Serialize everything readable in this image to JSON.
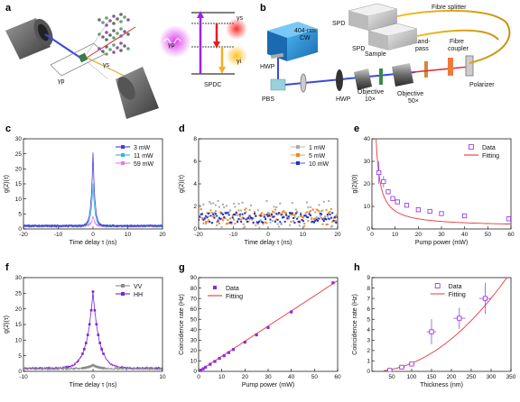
{
  "panel_labels": {
    "a": "a",
    "b": "b",
    "c": "c",
    "d": "d",
    "e": "e",
    "f": "f",
    "g": "g",
    "h": "h"
  },
  "schematic_a": {
    "gamma_p": "γp",
    "gamma_s": "γs",
    "gamma_i": "γi",
    "spdc": "SPDC"
  },
  "schematic_b": {
    "laser": "404-nm\nCW",
    "laser_l1": "404-nm",
    "laser_l2": "CW",
    "hwp1": "HWP",
    "pbs": "PBS",
    "hwp2": "HWP",
    "objective10_l1": "Objective",
    "objective10_l2": "10×",
    "sample": "Sample",
    "objective50_l1": "Objective",
    "objective50_l2": "50×",
    "bandpass_l1": "Band-",
    "bandpass_l2": "pass",
    "fibre_coupler_l1": "Fibre",
    "fibre_coupler_l2": "coupler",
    "polarizer": "Polarizer",
    "spd1": "SPD",
    "spd2": "SPD",
    "fibre_splitter": "Fibre splitter"
  },
  "colors": {
    "c_3mw": "#4a3bd8",
    "c_11mw": "#2fb8d8",
    "c_59mw": "#e07af0",
    "d_1mw": "#aaaaaa",
    "d_5mw": "#f08a1e",
    "d_10mw": "#1a2fd0",
    "purple": "#8a2be2",
    "red": "#e8373c",
    "vv": "#8a8a8a",
    "hh": "#7a22d8"
  },
  "chart_data": [
    {
      "id": "c",
      "type": "line",
      "xlabel": "Time delay τ (ns)",
      "ylabel": "g(2)(τ)",
      "xlim": [
        -20,
        20
      ],
      "ylim": [
        0,
        30
      ],
      "xticks": [
        -20,
        -10,
        0,
        10,
        20
      ],
      "yticks": [
        0,
        5,
        10,
        15,
        20,
        25,
        30
      ],
      "legend_position": "top-right",
      "series": [
        {
          "name": "3 mW",
          "color": "#4a3bd8",
          "peak": 25.5,
          "baseline": 1.0
        },
        {
          "name": "11 mW",
          "color": "#2fb8d8",
          "peak": 15.0,
          "baseline": 1.0
        },
        {
          "name": "59 mW",
          "color": "#e07af0",
          "peak": 4.2,
          "baseline": 1.0
        }
      ]
    },
    {
      "id": "d",
      "type": "scatter",
      "xlabel": "Time delay τ (ns)",
      "ylabel": "g(2)(τ)",
      "xlim": [
        -20,
        20
      ],
      "ylim": [
        0,
        8
      ],
      "xticks": [
        -20,
        -10,
        0,
        10,
        20
      ],
      "yticks": [
        0,
        2,
        4,
        6,
        8
      ],
      "legend_position": "top-right",
      "series": [
        {
          "name": "1 mW",
          "color": "#aaaaaa",
          "mean": 1.3,
          "spread": 1.2
        },
        {
          "name": "5 mW",
          "color": "#f08a1e",
          "mean": 1.1,
          "spread": 0.7
        },
        {
          "name": "10 mW",
          "color": "#1a2fd0",
          "mean": 1.0,
          "spread": 0.45
        }
      ]
    },
    {
      "id": "e",
      "type": "scatter",
      "xlabel": "Pump power (mW)",
      "ylabel": "g(2)(0)",
      "xlim": [
        0,
        60
      ],
      "ylim": [
        0,
        40
      ],
      "xticks": [
        0,
        10,
        20,
        30,
        40,
        50,
        60
      ],
      "yticks": [
        0,
        10,
        20,
        30,
        40
      ],
      "legend_position": "top-right",
      "series": [
        {
          "name": "Data",
          "color": "#8a2be2",
          "x": [
            3,
            5,
            7,
            9,
            11,
            15,
            20,
            25,
            30,
            40,
            59
          ],
          "y": [
            25,
            21,
            16.5,
            13.5,
            12,
            10.5,
            8.5,
            7.8,
            6.8,
            5.8,
            4.5
          ],
          "err": [
            5,
            2.5,
            1.2,
            0.8,
            0.6,
            0.4,
            0.4,
            0.3,
            0.3,
            0.2,
            0.3
          ]
        },
        {
          "name": "Fitting",
          "color": "#e8373c",
          "model": "1 + 70/x"
        }
      ]
    },
    {
      "id": "f",
      "type": "line",
      "xlabel": "Time delay τ (ns)",
      "ylabel": "g(2)(τ)",
      "xlim": [
        -10,
        10
      ],
      "ylim": [
        0,
        30
      ],
      "xticks": [
        -10,
        0,
        10
      ],
      "yticks": [
        0,
        5,
        10,
        15,
        20,
        25,
        30
      ],
      "legend_position": "top-right",
      "series": [
        {
          "name": "VV",
          "color": "#8a8a8a",
          "peak": 2.0,
          "baseline": 0.8
        },
        {
          "name": "HH",
          "color": "#7a22d8",
          "peak": 25.5,
          "baseline": 1.0
        }
      ]
    },
    {
      "id": "g",
      "type": "scatter",
      "xlabel": "Pump power (mW)",
      "ylabel": "Coincidence rate (Hz)",
      "xlim": [
        0,
        60
      ],
      "ylim": [
        0,
        90
      ],
      "xticks": [
        0,
        10,
        20,
        30,
        40,
        50,
        60
      ],
      "yticks": [
        0,
        10,
        20,
        30,
        40,
        50,
        60,
        70,
        80,
        90
      ],
      "legend_position": "top-left",
      "series": [
        {
          "name": "Data",
          "color": "#8a2be2",
          "x": [
            1,
            2,
            3,
            5,
            7,
            9,
            11,
            13,
            15,
            20,
            25,
            30,
            40,
            58
          ],
          "y": [
            1.2,
            2.5,
            4,
            6.8,
            9.5,
            12.5,
            15,
            18,
            21,
            28,
            35,
            42,
            57,
            85
          ]
        },
        {
          "name": "Fitting",
          "color": "#e8373c",
          "model": "1.45*x"
        }
      ]
    },
    {
      "id": "h",
      "type": "scatter",
      "xlabel": "Thickness (nm)",
      "ylabel": "Coincidence rate (Hz)",
      "xlim": [
        0,
        350
      ],
      "ylim": [
        0,
        9
      ],
      "xticks": [
        50,
        100,
        150,
        200,
        250,
        300,
        350
      ],
      "yticks": [
        0,
        1,
        2,
        3,
        4,
        5,
        6,
        7,
        8,
        9
      ],
      "legend_position": "top-center",
      "series": [
        {
          "name": "Data",
          "color": "#8a2be2",
          "x": [
            45,
            75,
            100,
            150,
            220,
            285
          ],
          "y": [
            0.1,
            0.4,
            0.7,
            3.8,
            5.1,
            7.0
          ],
          "xerr": [
            5,
            8,
            8,
            12,
            15,
            15
          ],
          "yerr": [
            0.1,
            0.2,
            0.2,
            1.2,
            1.0,
            1.5
          ]
        },
        {
          "name": "Fitting",
          "color": "#e8373c",
          "model": "a*x^2"
        }
      ]
    }
  ]
}
